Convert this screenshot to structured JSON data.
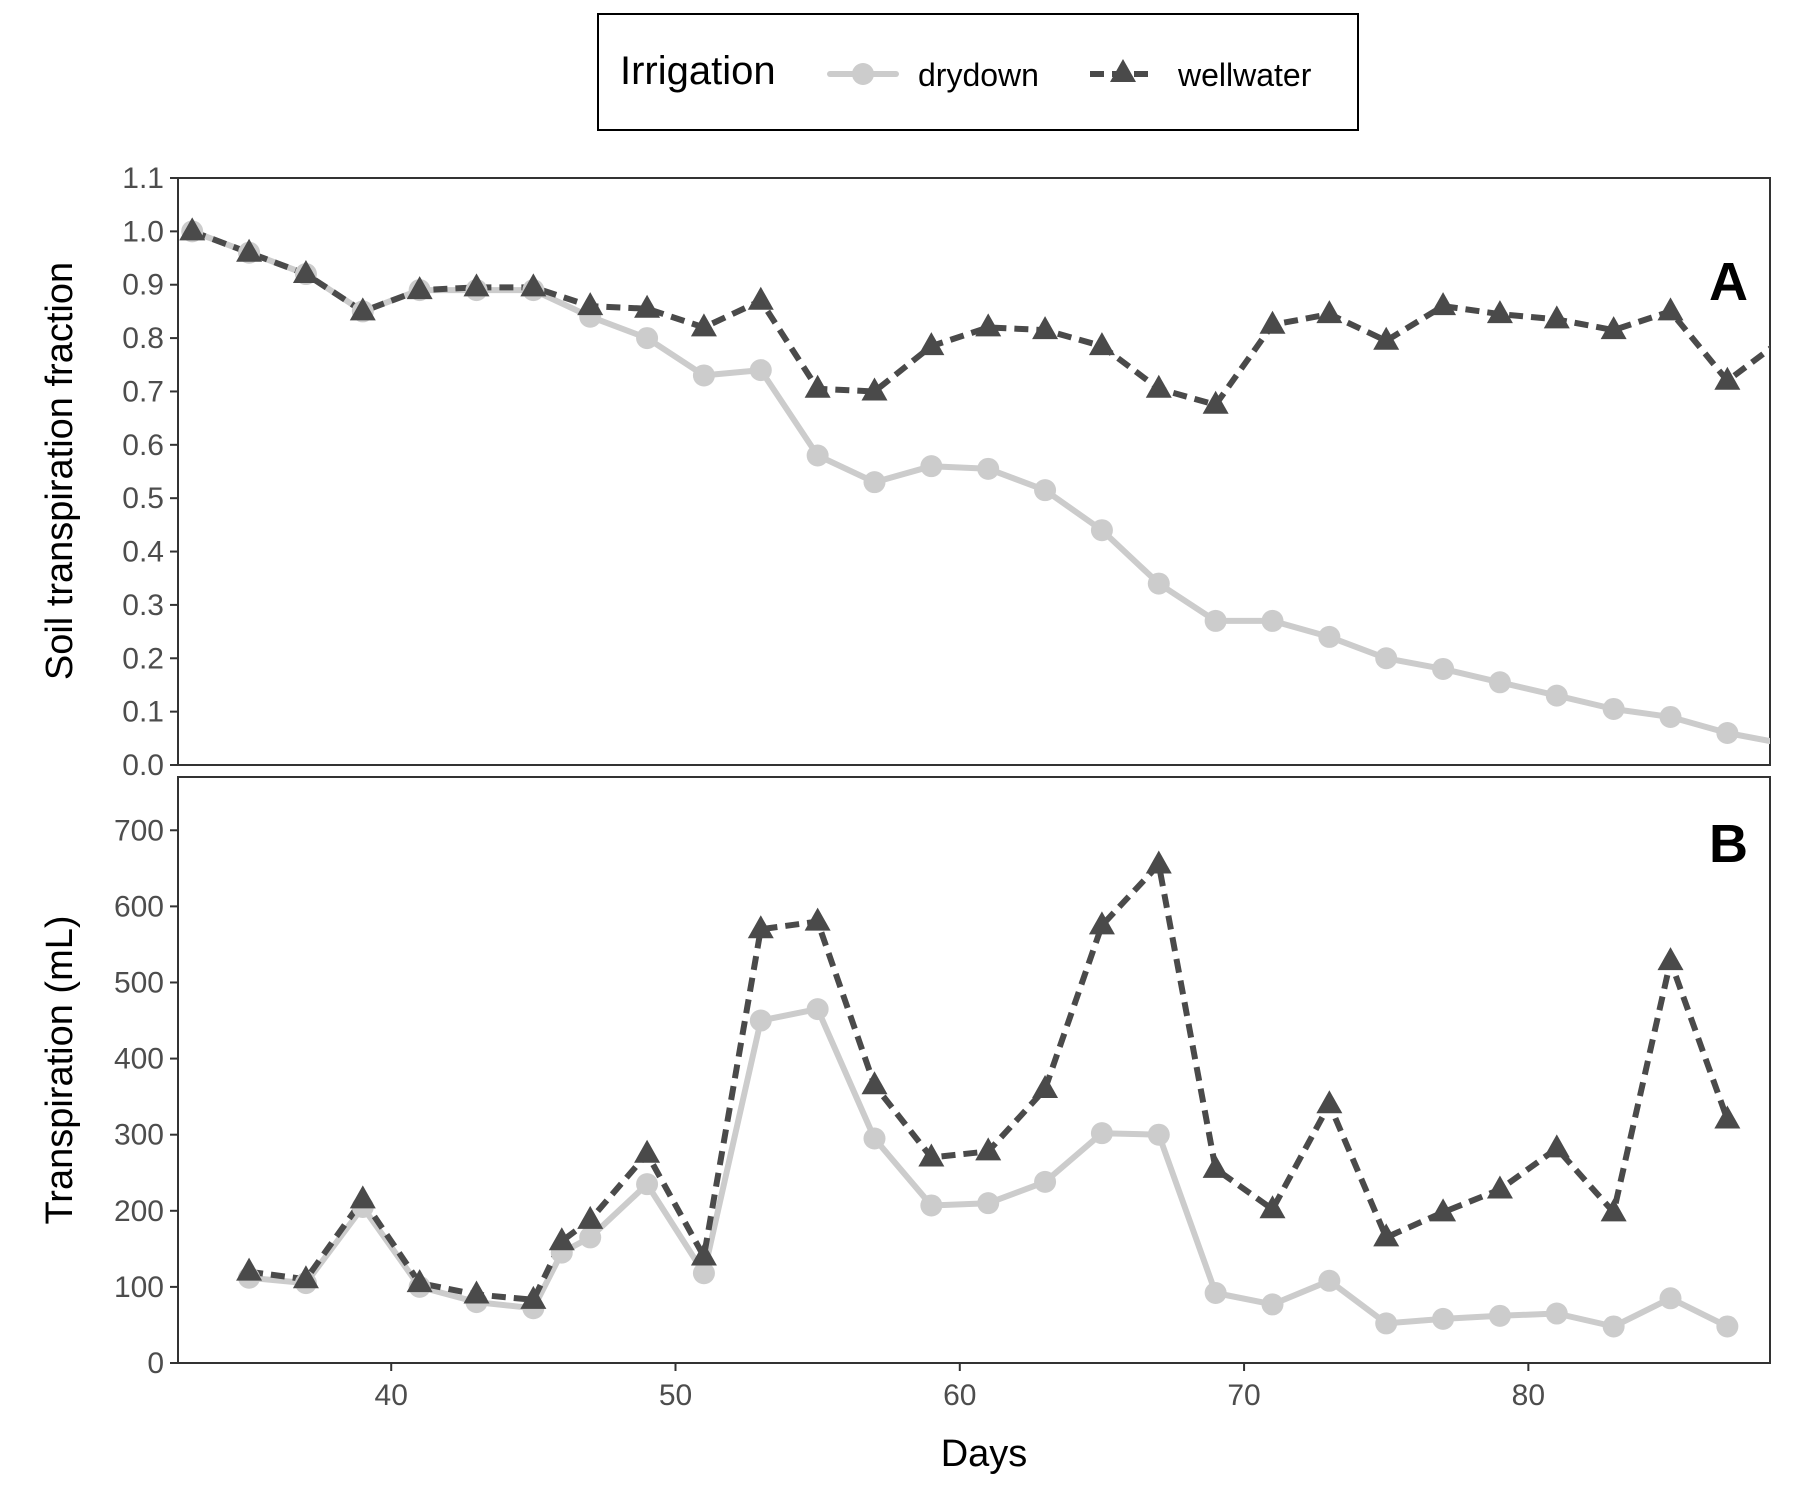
{
  "legend": {
    "title": "Irrigation",
    "position": "top-center",
    "entries": [
      "drydown",
      "wellwater"
    ]
  },
  "colors": {
    "drydown": "#cccccc",
    "wellwater": "#4a4a4a"
  },
  "chart_data": [
    {
      "type": "line",
      "panel_label": "A",
      "title": "",
      "xlabel": "",
      "ylabel": "Soil transpiration fraction",
      "xlim": [
        32.5,
        88.5
      ],
      "ylim": [
        0,
        1.1
      ],
      "yticks": [
        "0.0",
        "0.1",
        "0.2",
        "0.3",
        "0.4",
        "0.5",
        "0.6",
        "0.7",
        "0.8",
        "0.9",
        "1.0",
        "1.1"
      ],
      "grid": false,
      "series": [
        {
          "name": "drydown",
          "x": [
            33,
            35,
            37,
            39,
            41,
            43,
            45,
            47,
            49,
            51,
            53,
            55,
            57,
            59,
            61,
            63,
            65,
            67,
            69,
            71,
            73,
            75,
            77,
            79,
            81,
            83,
            85,
            87,
            89
          ],
          "values": [
            1.0,
            0.96,
            0.92,
            0.85,
            0.89,
            0.89,
            0.89,
            0.84,
            0.8,
            0.73,
            0.74,
            0.58,
            0.53,
            0.56,
            0.555,
            0.515,
            0.44,
            0.34,
            0.27,
            0.27,
            0.24,
            0.2,
            0.18,
            0.155,
            0.13,
            0.105,
            0.09,
            0.06,
            0.04
          ]
        },
        {
          "name": "wellwater",
          "x": [
            33,
            35,
            37,
            39,
            41,
            43,
            45,
            47,
            49,
            51,
            53,
            55,
            57,
            59,
            61,
            63,
            65,
            67,
            69,
            71,
            73,
            75,
            77,
            79,
            81,
            83,
            85,
            87,
            89
          ],
          "values": [
            1.0,
            0.96,
            0.92,
            0.85,
            0.89,
            0.895,
            0.895,
            0.86,
            0.855,
            0.82,
            0.87,
            0.705,
            0.7,
            0.785,
            0.82,
            0.815,
            0.785,
            0.705,
            0.675,
            0.825,
            0.845,
            0.795,
            0.86,
            0.845,
            0.835,
            0.815,
            0.85,
            0.72,
            0.8
          ]
        }
      ]
    },
    {
      "type": "line",
      "panel_label": "B",
      "title": "",
      "xlabel": "Days",
      "ylabel": "Transpiration (mL)",
      "xlim": [
        32.5,
        88.5
      ],
      "ylim": [
        0,
        770
      ],
      "xticks": [
        "40",
        "50",
        "60",
        "70",
        "80"
      ],
      "yticks": [
        "0",
        "100",
        "200",
        "300",
        "400",
        "500",
        "600",
        "700"
      ],
      "grid": false,
      "series": [
        {
          "name": "drydown",
          "x": [
            35,
            37,
            39,
            41,
            43,
            45,
            46,
            47,
            49,
            51,
            53,
            55,
            57,
            59,
            61,
            63,
            65,
            67,
            69,
            71,
            73,
            75,
            77,
            79,
            81,
            83,
            85,
            87
          ],
          "values": [
            112,
            105,
            205,
            100,
            80,
            72,
            145,
            165,
            235,
            118,
            450,
            465,
            295,
            207,
            210,
            238,
            302,
            300,
            92,
            77,
            108,
            52,
            58,
            62,
            65,
            48,
            85,
            48
          ]
        },
        {
          "name": "wellwater",
          "x": [
            35,
            37,
            39,
            41,
            43,
            45,
            46,
            47,
            49,
            51,
            53,
            55,
            57,
            59,
            61,
            63,
            65,
            67,
            69,
            71,
            73,
            75,
            77,
            79,
            81,
            83,
            85,
            87
          ],
          "values": [
            120,
            110,
            215,
            105,
            90,
            83,
            160,
            188,
            275,
            140,
            570,
            580,
            365,
            270,
            278,
            360,
            575,
            655,
            255,
            202,
            340,
            165,
            198,
            228,
            282,
            198,
            528,
            320
          ]
        }
      ]
    }
  ]
}
